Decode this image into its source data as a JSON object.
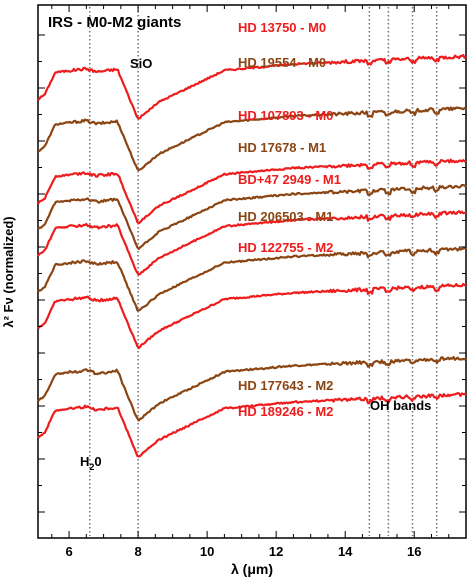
{
  "chart_data": {
    "type": "line",
    "title": "IRS - M0-M2 giants",
    "xlabel": "λ (μm)",
    "ylabel": "λ² Fν (normalized)",
    "xlim": [
      5.1,
      17.5
    ],
    "x_ticks": [
      "6",
      "8",
      "10",
      "12",
      "14",
      "16"
    ],
    "y_tick_labels": "none",
    "grid": false,
    "legend": "labels placed beside each spectrum",
    "reference_lines_um": [
      6.6,
      8.0,
      14.7,
      15.25,
      15.95,
      16.65
    ],
    "colors": {
      "red": "#ee1c1c",
      "brown": "#8b4513"
    },
    "annotations": {
      "sio": "SiO",
      "h2o_main": "H",
      "h2o_sub": "2",
      "h2o_tail": "0",
      "oh": "OH bands"
    },
    "series": [
      {
        "name": "HD 13750 - M0",
        "color": "#ee1c1c",
        "offset": 8.0
      },
      {
        "name": "HD 19554 - M0",
        "color": "#8b4513",
        "offset": 7.0
      },
      {
        "name": "HD 107893 - M0",
        "color": "#ee1c1c",
        "offset": 6.0
      },
      {
        "name": "HD 17678 - M1",
        "color": "#8b4513",
        "offset": 5.5
      },
      {
        "name": "BD+47 2949 - M1",
        "color": "#ee1c1c",
        "offset": 5.0
      },
      {
        "name": "HD 206503 - M1",
        "color": "#8b4513",
        "offset": 4.3
      },
      {
        "name": "HD 122755 - M2",
        "color": "#ee1c1c",
        "offset": 3.6
      },
      {
        "name": "HD 177643 - M2",
        "color": "#8b4513",
        "offset": 2.2
      },
      {
        "name": "HD 189246 - M2",
        "color": "#ee1c1c",
        "offset": 1.5
      }
    ]
  }
}
